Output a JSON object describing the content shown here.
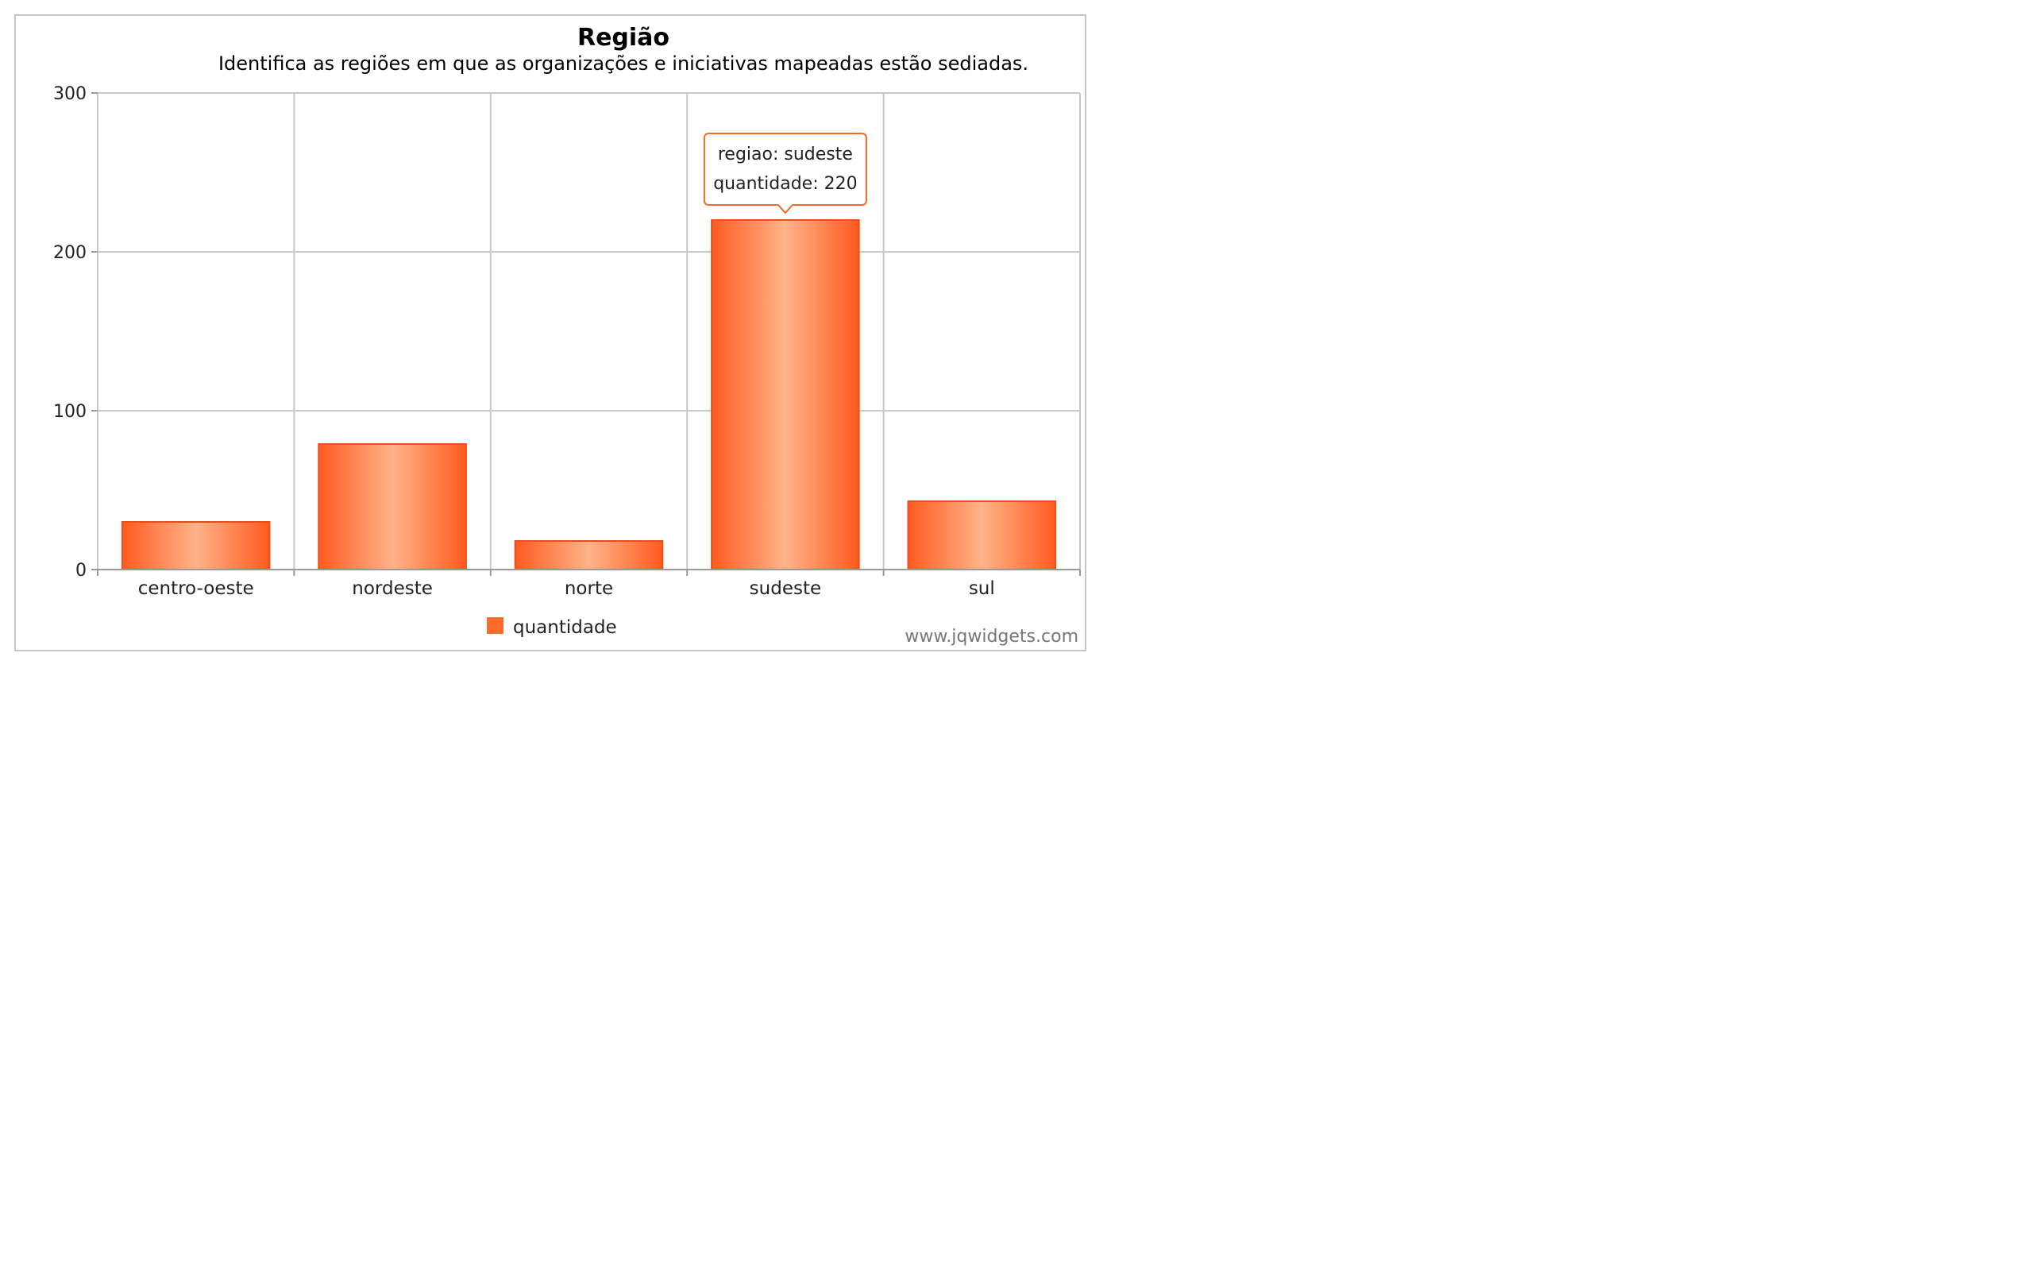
{
  "chart_data": {
    "type": "bar",
    "title": "Região",
    "subtitle": "Identifica as regiões em que as organizações e iniciativas mapeadas estão sediadas.",
    "categories": [
      "centro-oeste",
      "nordeste",
      "norte",
      "sudeste",
      "sul"
    ],
    "series": [
      {
        "name": "quantidade",
        "values": [
          30,
          79,
          18,
          220,
          43
        ],
        "color": "#ff6a2a"
      }
    ],
    "ylim": [
      0,
      300
    ],
    "yticks": [
      "0",
      "100",
      "200",
      "300"
    ],
    "grid": true,
    "legend": "bottom-center"
  },
  "tooltip": {
    "line1": "regiao: sudeste",
    "line2": "quantidade: 220"
  },
  "watermark": "www.jqwidgets.com",
  "colors": {
    "bar_dark": "#ff5a1f",
    "bar_light": "#ffb38a",
    "bar_border": "#e8501a",
    "grid": "#c8c8c8",
    "tooltip_border": "#f06a2a"
  }
}
